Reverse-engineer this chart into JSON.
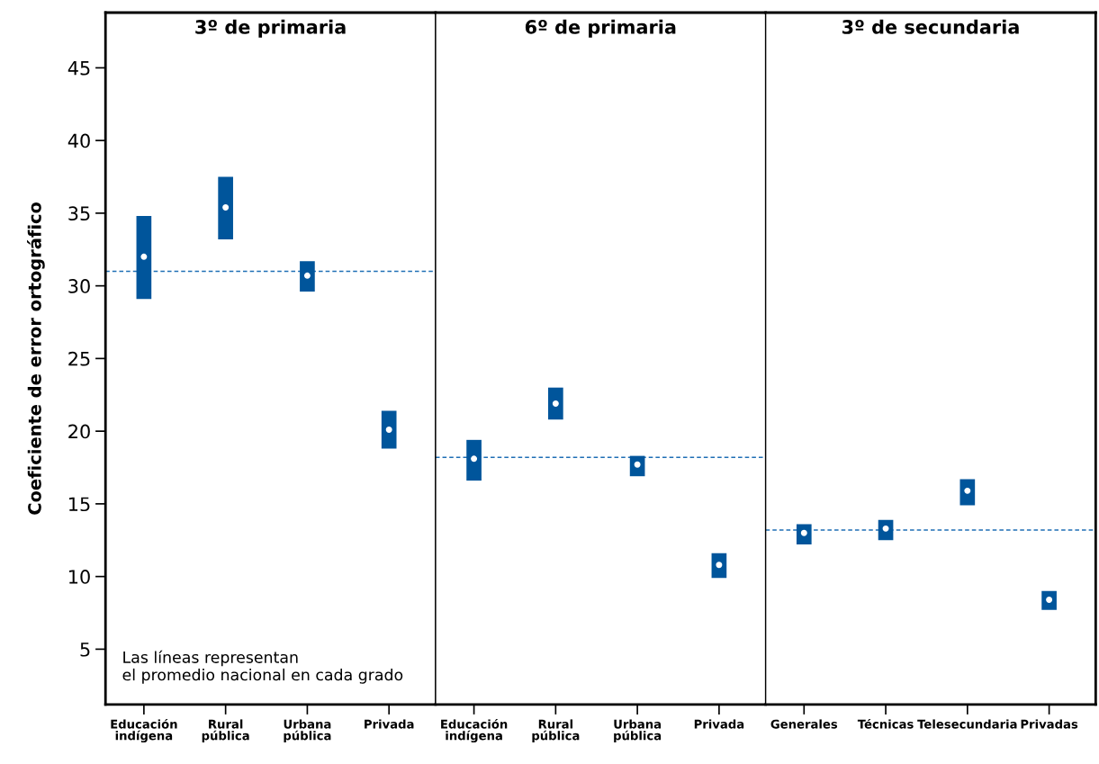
{
  "chart_data": [
    {
      "type": "scatter",
      "title": "3º de primaria",
      "ylabel": "Coeficiente de error ortográfico",
      "categories": [
        "Educación\nindígena",
        "Rural\npública",
        "Urbana\npública",
        "Privada"
      ],
      "ylim": [
        1.2,
        48.8
      ],
      "yticks": [
        5,
        10,
        15,
        20,
        25,
        30,
        35,
        40,
        45
      ],
      "marker": "circle",
      "grid": false,
      "series": [
        {
          "color": "#ffffff",
          "values": [
            32.0,
            35.4,
            30.7,
            20.1
          ],
          "errors": [
            [
              29.1,
              34.8
            ],
            [
              33.2,
              37.5
            ],
            [
              29.6,
              31.7
            ],
            [
              18.8,
              21.4
            ]
          ]
        }
      ],
      "ref_lines": [
        {
          "axis": "y",
          "value": 31.0,
          "color": "#1f6fb5",
          "line_style": "dashed"
        }
      ],
      "annotations": [
        "Las líneas representan\nel promedio nacional en cada grado"
      ]
    },
    {
      "type": "scatter",
      "title": "6º de primaria",
      "categories": [
        "Educación\nindígena",
        "Rural\npública",
        "Urbana\npública",
        "Privada"
      ],
      "ylim": [
        1.2,
        48.8
      ],
      "yticks": [
        5,
        10,
        15,
        20,
        25,
        30,
        35,
        40,
        45
      ],
      "tick_labels": "x",
      "marker": "circle",
      "grid": false,
      "series": [
        {
          "color": "#ffffff",
          "values": [
            18.1,
            21.9,
            17.7,
            10.8
          ],
          "errors": [
            [
              16.6,
              19.4
            ],
            [
              20.8,
              23.0
            ],
            [
              16.9,
              18.3
            ],
            [
              9.9,
              11.6
            ]
          ]
        }
      ],
      "ref_lines": [
        {
          "axis": "y",
          "value": 18.2,
          "color": "#1f6fb5",
          "line_style": "dashed"
        }
      ]
    },
    {
      "type": "scatter",
      "title": "3º de secundaria",
      "categories": [
        "Generales",
        "Técnicas",
        "Telesecundaria",
        "Privadas"
      ],
      "ylim": [
        1.2,
        48.8
      ],
      "yticks": [
        5,
        10,
        15,
        20,
        25,
        30,
        35,
        40,
        45
      ],
      "tick_labels": "x",
      "marker": "circle",
      "grid": false,
      "series": [
        {
          "color": "#ffffff",
          "values": [
            13.0,
            13.3,
            15.9,
            8.4
          ],
          "errors": [
            [
              12.2,
              13.6
            ],
            [
              12.5,
              13.9
            ],
            [
              14.9,
              16.7
            ],
            [
              7.7,
              9.0
            ]
          ]
        }
      ],
      "ref_lines": [
        {
          "axis": "y",
          "value": 13.2,
          "color": "#1f6fb5",
          "line_style": "dashed"
        }
      ]
    }
  ]
}
